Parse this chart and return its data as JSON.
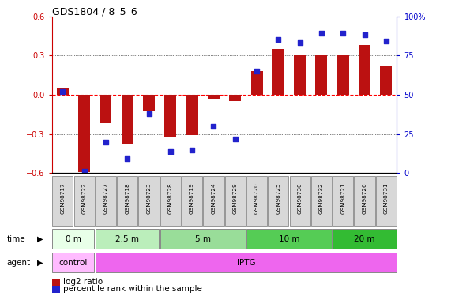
{
  "title": "GDS1804 / 8_5_6",
  "samples": [
    "GSM98717",
    "GSM98722",
    "GSM98727",
    "GSM98718",
    "GSM98723",
    "GSM98728",
    "GSM98719",
    "GSM98724",
    "GSM98729",
    "GSM98720",
    "GSM98725",
    "GSM98730",
    "GSM98732",
    "GSM98721",
    "GSM98726",
    "GSM98731"
  ],
  "log2_ratio": [
    0.05,
    -0.59,
    -0.22,
    -0.38,
    -0.12,
    -0.32,
    -0.31,
    -0.03,
    -0.05,
    0.18,
    0.35,
    0.3,
    0.3,
    0.3,
    0.38,
    0.22
  ],
  "pct_rank": [
    52,
    1,
    20,
    9,
    38,
    14,
    15,
    30,
    22,
    65,
    85,
    83,
    89,
    89,
    88,
    84
  ],
  "ylim_left": [
    -0.6,
    0.6
  ],
  "ylim_right": [
    0,
    100
  ],
  "yticks_left": [
    -0.6,
    -0.3,
    0.0,
    0.3,
    0.6
  ],
  "yticks_right": [
    0,
    25,
    50,
    75,
    100
  ],
  "bar_color": "#bb1111",
  "dot_color": "#2222cc",
  "time_groups": [
    {
      "label": "0 m",
      "start": 0,
      "end": 2,
      "color": "#e8ffe8"
    },
    {
      "label": "2.5 m",
      "start": 2,
      "end": 5,
      "color": "#bbeebb"
    },
    {
      "label": "5 m",
      "start": 5,
      "end": 9,
      "color": "#99dd99"
    },
    {
      "label": "10 m",
      "start": 9,
      "end": 13,
      "color": "#55cc55"
    },
    {
      "label": "20 m",
      "start": 13,
      "end": 16,
      "color": "#33bb33"
    }
  ],
  "agent_groups": [
    {
      "label": "control",
      "start": 0,
      "end": 2,
      "color": "#ffbbff"
    },
    {
      "label": "IPTG",
      "start": 2,
      "end": 16,
      "color": "#ee66ee"
    }
  ],
  "legend_bar_label": "log2 ratio",
  "legend_dot_label": "percentile rank within the sample",
  "time_label": "time",
  "agent_label": "agent",
  "left_axis_color": "#cc0000",
  "right_axis_color": "#0000cc",
  "sample_box_color": "#d8d8d8",
  "sample_box_edge": "#888888"
}
